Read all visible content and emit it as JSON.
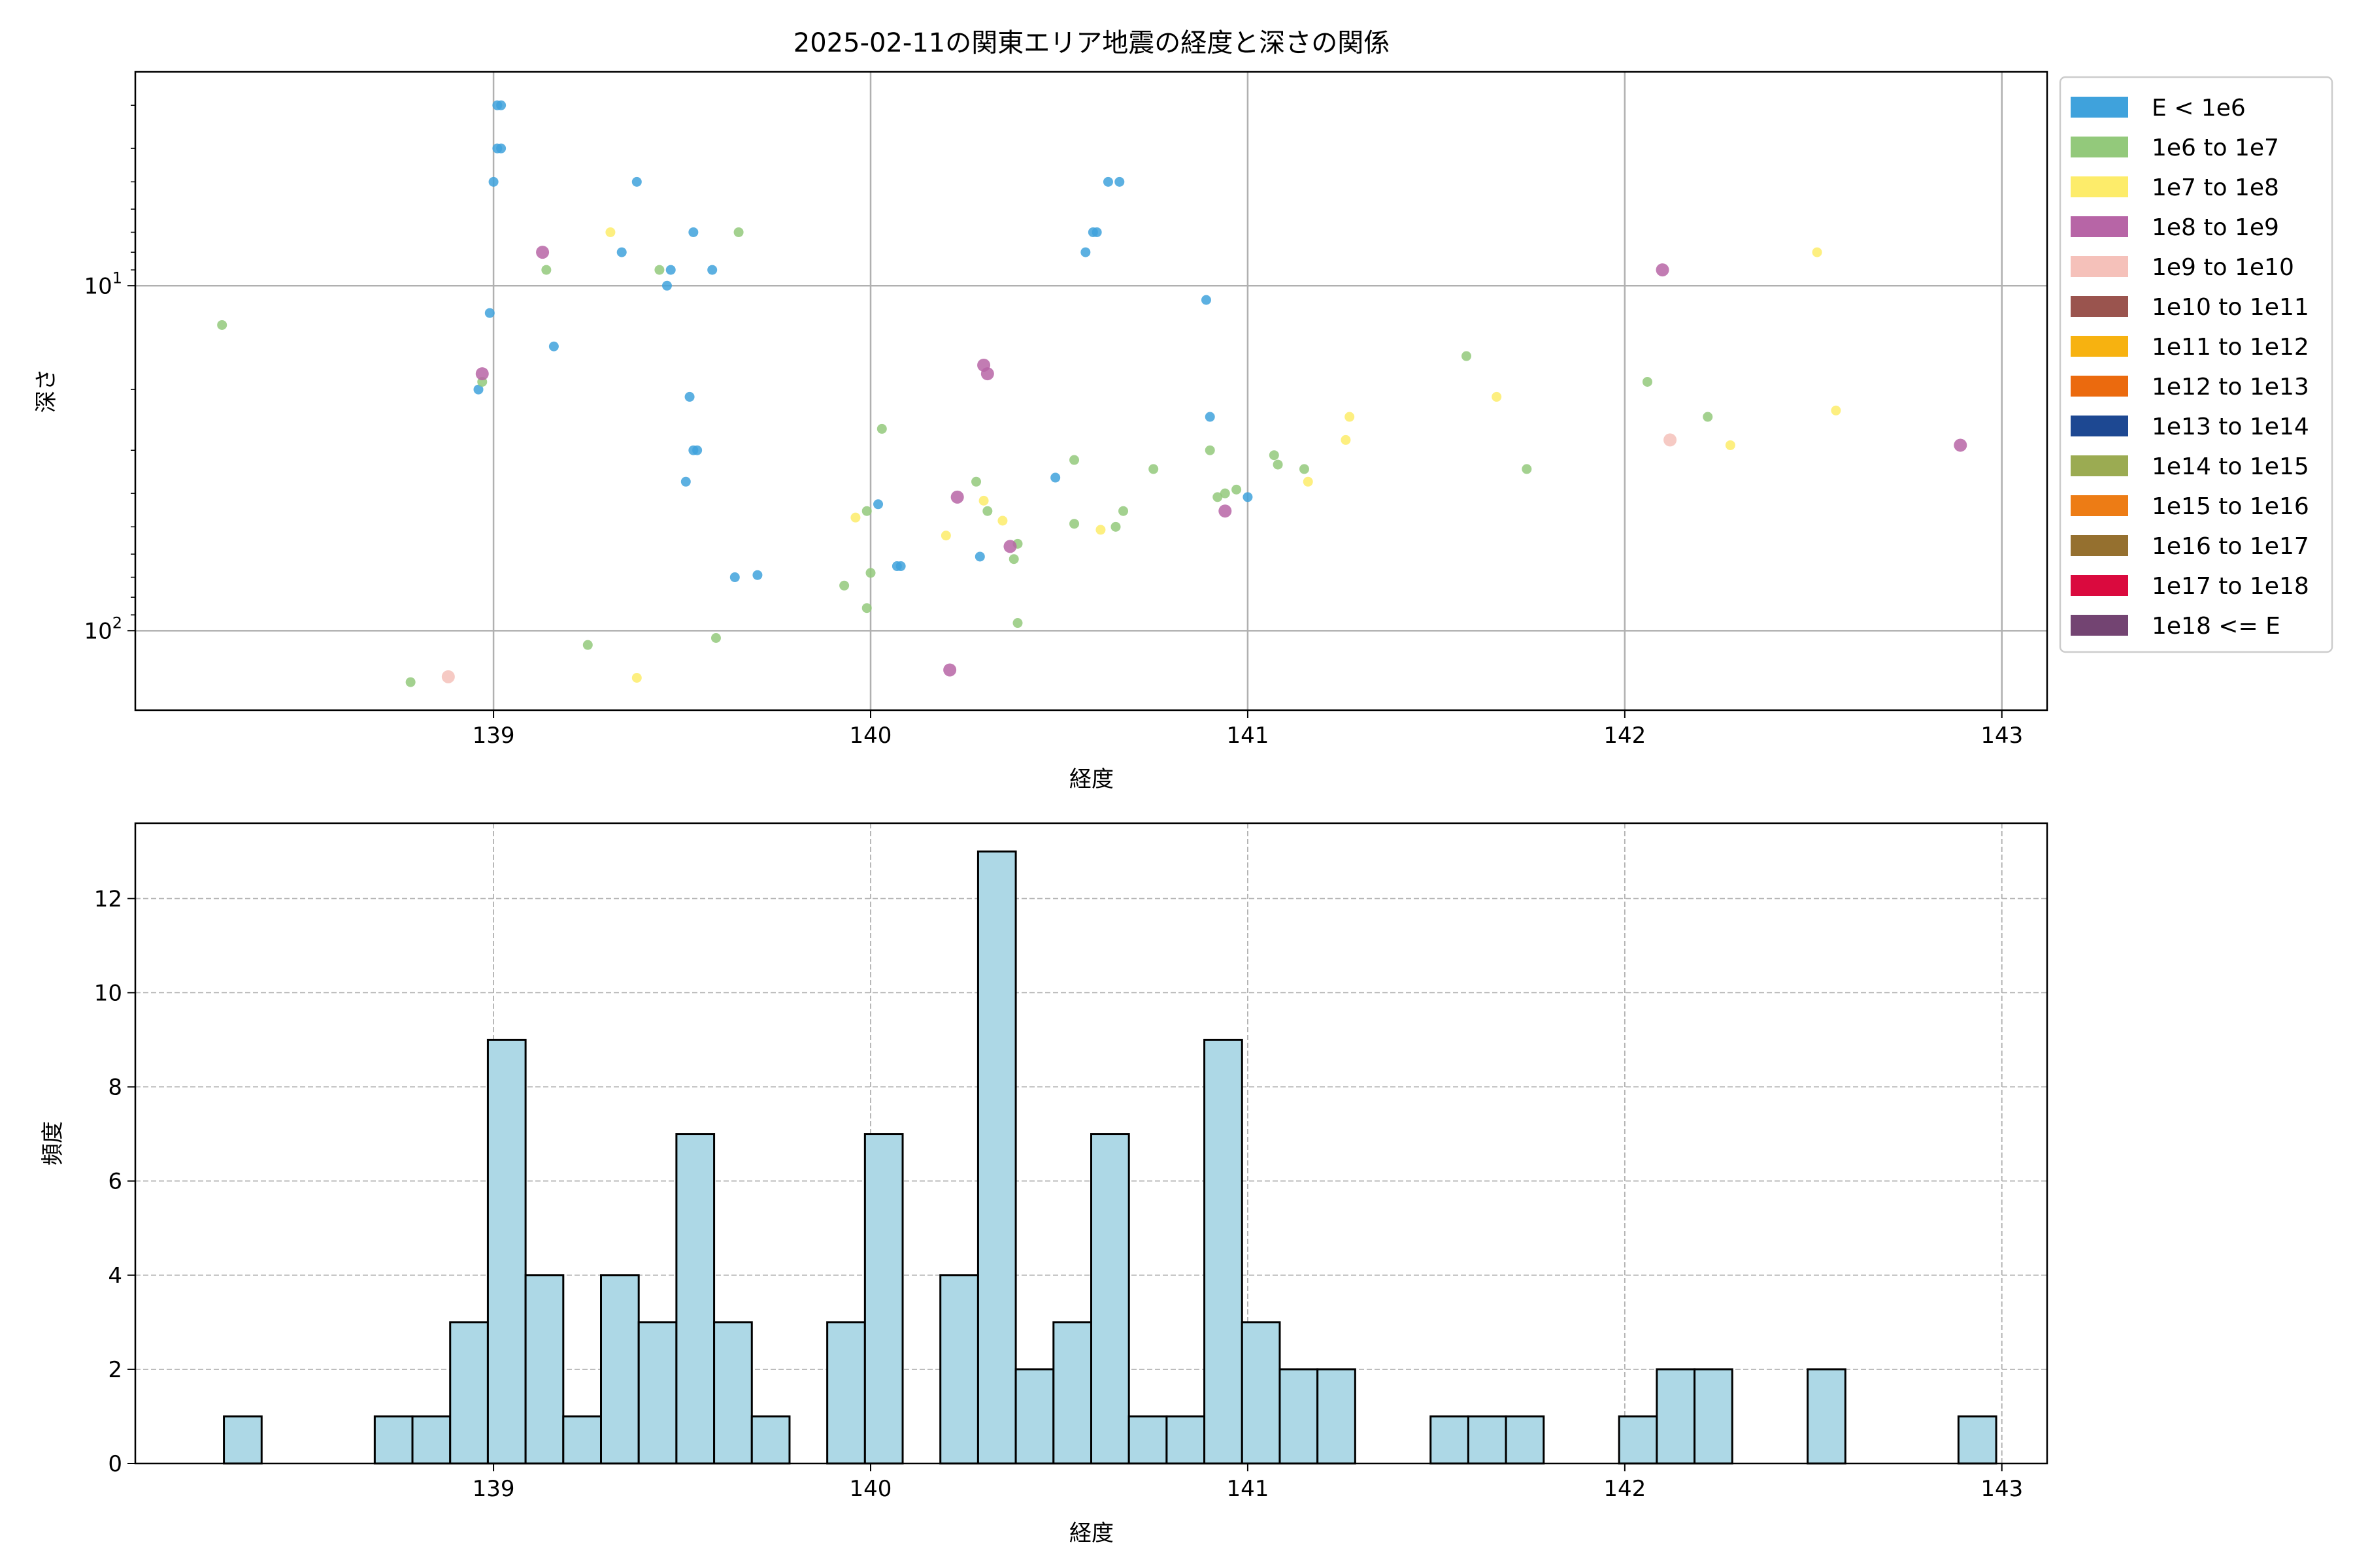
{
  "chart_data": [
    {
      "type": "scatter",
      "title": "2025-02-11の関東エリア地震の経度と深さの関係",
      "xlabel": "経度",
      "ylabel": "深さ",
      "xlim": [
        138.05,
        143.12
      ],
      "ylim": [
        170,
        2.4
      ],
      "y_scale": "log",
      "y_inverted": true,
      "xticks": [
        "139",
        "140",
        "141",
        "142",
        "143"
      ],
      "xtick_values": [
        139,
        140,
        141,
        142,
        143
      ],
      "yticks": [
        {
          "value": 10,
          "label": "10",
          "sup": "1"
        },
        {
          "value": 100,
          "label": "10",
          "sup": "2"
        }
      ],
      "grid": true,
      "legend_position": "outside-right",
      "legend": [
        {
          "label": "E < 1e6",
          "color": "#3fa2dc"
        },
        {
          "label": "1e6 to 1e7",
          "color": "#93c97b"
        },
        {
          "label": "1e7 to 1e8",
          "color": "#fdec6a"
        },
        {
          "label": "1e8 to 1e9",
          "color": "#b765a6"
        },
        {
          "label": "1e9 to 1e10",
          "color": "#f5c1ba"
        },
        {
          "label": "1e10 to 1e11",
          "color": "#9a544e"
        },
        {
          "label": "1e11 to 1e12",
          "color": "#f7b210"
        },
        {
          "label": "1e12 to 1e13",
          "color": "#eb6a0e"
        },
        {
          "label": "1e13 to 1e14",
          "color": "#1d4892"
        },
        {
          "label": "1e14 to 1e15",
          "color": "#9bab52"
        },
        {
          "label": "1e15 to 1e16",
          "color": "#ed7c15"
        },
        {
          "label": "1e16 to 1e17",
          "color": "#95702f"
        },
        {
          "label": "1e17 to 1e18",
          "color": "#da0a3e"
        },
        {
          "label": "1e18 <= E",
          "color": "#734472"
        }
      ],
      "points": [
        {
          "x": 139.01,
          "y": 3.0,
          "c": 0
        },
        {
          "x": 139.02,
          "y": 3.0,
          "c": 0
        },
        {
          "x": 139.01,
          "y": 4.0,
          "c": 0
        },
        {
          "x": 139.02,
          "y": 4.0,
          "c": 0
        },
        {
          "x": 139.0,
          "y": 5.0,
          "c": 0
        },
        {
          "x": 139.38,
          "y": 5.0,
          "c": 0
        },
        {
          "x": 140.63,
          "y": 5.0,
          "c": 0
        },
        {
          "x": 140.66,
          "y": 5.0,
          "c": 0
        },
        {
          "x": 139.53,
          "y": 7.0,
          "c": 0
        },
        {
          "x": 140.59,
          "y": 7.0,
          "c": 0
        },
        {
          "x": 140.6,
          "y": 7.0,
          "c": 0
        },
        {
          "x": 139.34,
          "y": 8.0,
          "c": 0
        },
        {
          "x": 140.57,
          "y": 8.0,
          "c": 0
        },
        {
          "x": 139.47,
          "y": 9.0,
          "c": 0
        },
        {
          "x": 139.58,
          "y": 9.0,
          "c": 0
        },
        {
          "x": 139.46,
          "y": 10.0,
          "c": 0
        },
        {
          "x": 140.89,
          "y": 11.0,
          "c": 0
        },
        {
          "x": 138.99,
          "y": 12.0,
          "c": 0
        },
        {
          "x": 139.16,
          "y": 15.0,
          "c": 0
        },
        {
          "x": 138.96,
          "y": 20.0,
          "c": 0
        },
        {
          "x": 139.52,
          "y": 21.0,
          "c": 0
        },
        {
          "x": 140.9,
          "y": 24.0,
          "c": 0
        },
        {
          "x": 139.54,
          "y": 30.0,
          "c": 0
        },
        {
          "x": 139.53,
          "y": 30.0,
          "c": 0
        },
        {
          "x": 139.51,
          "y": 37.0,
          "c": 0
        },
        {
          "x": 140.49,
          "y": 36.0,
          "c": 0
        },
        {
          "x": 141.0,
          "y": 41.0,
          "c": 0
        },
        {
          "x": 140.02,
          "y": 43.0,
          "c": 0
        },
        {
          "x": 140.29,
          "y": 61.0,
          "c": 0
        },
        {
          "x": 140.07,
          "y": 65.0,
          "c": 0
        },
        {
          "x": 140.08,
          "y": 65.0,
          "c": 0
        },
        {
          "x": 139.64,
          "y": 70.0,
          "c": 0
        },
        {
          "x": 139.7,
          "y": 69.0,
          "c": 0
        },
        {
          "x": 138.28,
          "y": 13.0,
          "c": 1
        },
        {
          "x": 139.14,
          "y": 9.0,
          "c": 1
        },
        {
          "x": 139.44,
          "y": 9.0,
          "c": 1
        },
        {
          "x": 139.65,
          "y": 7.0,
          "c": 1
        },
        {
          "x": 138.97,
          "y": 19.0,
          "c": 1
        },
        {
          "x": 140.03,
          "y": 26.0,
          "c": 1
        },
        {
          "x": 141.58,
          "y": 16.0,
          "c": 1
        },
        {
          "x": 142.06,
          "y": 19.0,
          "c": 1
        },
        {
          "x": 142.22,
          "y": 24.0,
          "c": 1
        },
        {
          "x": 140.9,
          "y": 30.0,
          "c": 1
        },
        {
          "x": 140.54,
          "y": 32.0,
          "c": 1
        },
        {
          "x": 141.07,
          "y": 31.0,
          "c": 1
        },
        {
          "x": 141.08,
          "y": 33.0,
          "c": 1
        },
        {
          "x": 140.75,
          "y": 34.0,
          "c": 1
        },
        {
          "x": 141.15,
          "y": 34.0,
          "c": 1
        },
        {
          "x": 141.74,
          "y": 34.0,
          "c": 1
        },
        {
          "x": 140.28,
          "y": 37.0,
          "c": 1
        },
        {
          "x": 140.97,
          "y": 39.0,
          "c": 1
        },
        {
          "x": 140.94,
          "y": 40.0,
          "c": 1
        },
        {
          "x": 140.92,
          "y": 41.0,
          "c": 1
        },
        {
          "x": 139.99,
          "y": 45.0,
          "c": 1
        },
        {
          "x": 140.31,
          "y": 45.0,
          "c": 1
        },
        {
          "x": 140.67,
          "y": 45.0,
          "c": 1
        },
        {
          "x": 140.54,
          "y": 49.0,
          "c": 1
        },
        {
          "x": 140.65,
          "y": 50.0,
          "c": 1
        },
        {
          "x": 140.39,
          "y": 56.0,
          "c": 1
        },
        {
          "x": 140.38,
          "y": 62.0,
          "c": 1
        },
        {
          "x": 140.0,
          "y": 68.0,
          "c": 1
        },
        {
          "x": 139.93,
          "y": 74.0,
          "c": 1
        },
        {
          "x": 139.99,
          "y": 86.0,
          "c": 1
        },
        {
          "x": 140.39,
          "y": 95.0,
          "c": 1
        },
        {
          "x": 139.59,
          "y": 105.0,
          "c": 1
        },
        {
          "x": 139.25,
          "y": 110.0,
          "c": 1
        },
        {
          "x": 138.78,
          "y": 141.0,
          "c": 1
        },
        {
          "x": 139.31,
          "y": 7.0,
          "c": 2
        },
        {
          "x": 142.51,
          "y": 8.0,
          "c": 2
        },
        {
          "x": 141.66,
          "y": 21.0,
          "c": 2
        },
        {
          "x": 142.56,
          "y": 23.0,
          "c": 2
        },
        {
          "x": 141.27,
          "y": 24.0,
          "c": 2
        },
        {
          "x": 141.26,
          "y": 28.0,
          "c": 2
        },
        {
          "x": 142.28,
          "y": 29.0,
          "c": 2
        },
        {
          "x": 141.16,
          "y": 37.0,
          "c": 2
        },
        {
          "x": 140.3,
          "y": 42.0,
          "c": 2
        },
        {
          "x": 139.96,
          "y": 47.0,
          "c": 2
        },
        {
          "x": 140.35,
          "y": 48.0,
          "c": 2
        },
        {
          "x": 140.2,
          "y": 53.0,
          "c": 2
        },
        {
          "x": 140.61,
          "y": 51.0,
          "c": 2
        },
        {
          "x": 139.38,
          "y": 137.0,
          "c": 2
        },
        {
          "x": 139.13,
          "y": 8.0,
          "c": 3
        },
        {
          "x": 142.1,
          "y": 9.0,
          "c": 3
        },
        {
          "x": 140.3,
          "y": 17.0,
          "c": 3
        },
        {
          "x": 140.31,
          "y": 18.0,
          "c": 3
        },
        {
          "x": 138.97,
          "y": 18.0,
          "c": 3
        },
        {
          "x": 142.89,
          "y": 29.0,
          "c": 3
        },
        {
          "x": 140.23,
          "y": 41.0,
          "c": 3
        },
        {
          "x": 140.94,
          "y": 45.0,
          "c": 3
        },
        {
          "x": 140.37,
          "y": 57.0,
          "c": 3
        },
        {
          "x": 140.21,
          "y": 130.0,
          "c": 3
        },
        {
          "x": 142.12,
          "y": 28.0,
          "c": 4
        },
        {
          "x": 138.88,
          "y": 136.0,
          "c": 4
        }
      ]
    },
    {
      "type": "bar",
      "xlabel": "経度",
      "ylabel": "頻度",
      "xlim": [
        138.05,
        143.12
      ],
      "ylim": [
        0,
        13.6
      ],
      "xticks": [
        "139",
        "140",
        "141",
        "142",
        "143"
      ],
      "xtick_values": [
        139,
        140,
        141,
        142,
        143
      ],
      "yticks": [
        0,
        2,
        4,
        6,
        8,
        10,
        12
      ],
      "grid": true,
      "bar_color": "#add8e6",
      "edge_color": "#000000",
      "bin_start": 138.285,
      "bin_width": 0.1,
      "values": [
        1,
        0,
        0,
        0,
        1,
        1,
        3,
        9,
        4,
        1,
        4,
        3,
        7,
        3,
        1,
        0,
        3,
        7,
        0,
        4,
        13,
        2,
        3,
        7,
        1,
        1,
        9,
        3,
        2,
        2,
        0,
        0,
        1,
        1,
        1,
        0,
        0,
        1,
        2,
        2,
        0,
        0,
        2,
        0,
        0,
        0,
        1
      ]
    }
  ]
}
